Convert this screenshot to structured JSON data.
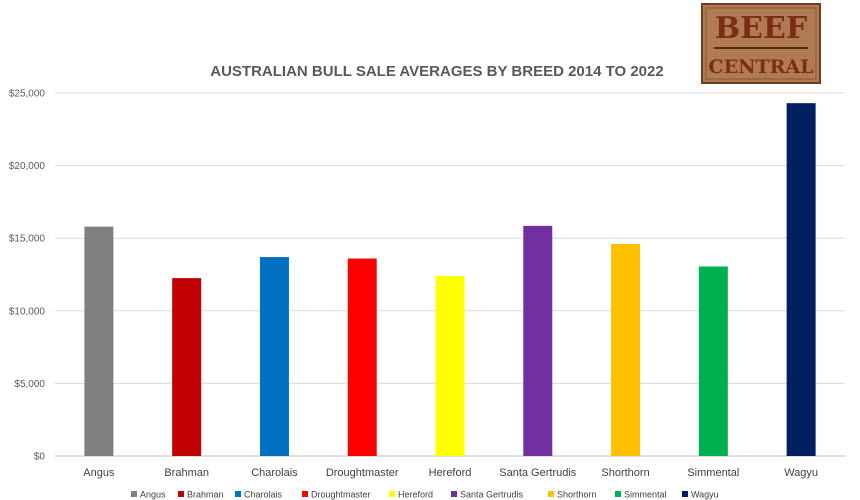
{
  "chart_data": {
    "type": "bar",
    "title": "AUSTRALIAN BULL SALE AVERAGES BY BREED 2014 TO 2022",
    "xlabel": "",
    "ylabel": "",
    "ylim": [
      0,
      25000
    ],
    "y_ticks": [
      "$0",
      "$5,000",
      "$10,000",
      "$15,000",
      "$20,000",
      "$25,000"
    ],
    "y_tick_values": [
      0,
      5000,
      10000,
      15000,
      20000,
      25000
    ],
    "grid": true,
    "legend_position": "bottom",
    "categories": [
      "Angus",
      "Brahman",
      "Charolais",
      "Droughtmaster",
      "Hereford",
      "Santa Gertrudis",
      "Shorthorn",
      "Simmental",
      "Wagyu"
    ],
    "values": [
      15800,
      12250,
      13700,
      13600,
      12400,
      15850,
      14600,
      13050,
      24300
    ],
    "colors": [
      "#808080",
      "#c00000",
      "#0070c0",
      "#ff0000",
      "#ffff00",
      "#7030a0",
      "#ffc000",
      "#00b050",
      "#002060"
    ]
  },
  "logo": {
    "line1": "BEEF",
    "line2": "CENTRAL"
  }
}
